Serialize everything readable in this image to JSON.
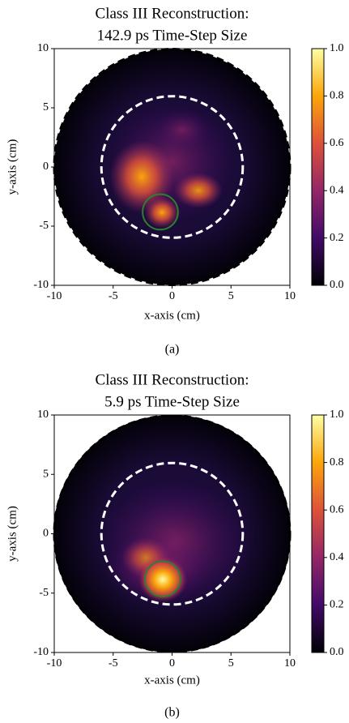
{
  "chart_data": [
    {
      "type": "heatmap",
      "title": [
        "Class III Reconstruction:",
        "142.9 ps Time-Step Size"
      ],
      "xlabel": "x-axis (cm)",
      "ylabel": "y-axis (cm)",
      "xlim": [
        -10,
        10
      ],
      "ylim": [
        -10,
        10
      ],
      "xticks": [
        -10,
        -5,
        0,
        5,
        10
      ],
      "yticks": [
        -10,
        -5,
        0,
        5,
        10
      ],
      "colormap": [
        "#000004",
        "#420a68",
        "#932667",
        "#dd513a",
        "#fca50a",
        "#fcffa4"
      ],
      "colorbar": {
        "lim": [
          0,
          1
        ],
        "ticks": [
          {
            "value": 0,
            "label": "0.0"
          },
          {
            "value": 0.2,
            "label": "0.2"
          },
          {
            "value": 0.4,
            "label": "0.4"
          },
          {
            "value": 0.6,
            "label": "0.6"
          },
          {
            "value": 0.8,
            "label": "0.8"
          },
          {
            "value": 1,
            "label": "1.0"
          }
        ]
      },
      "circles": [
        {
          "cx": 0,
          "cy": 0,
          "r": 10,
          "color": "#000000",
          "style": "dashed"
        },
        {
          "cx": 0,
          "cy": 0,
          "r": 6,
          "color": "#ffffff",
          "style": "dashed"
        },
        {
          "cx": -1,
          "cy": -3.8,
          "r": 1.5,
          "color": "#2e7d32",
          "style": "solid"
        }
      ],
      "caption": "(a)"
    },
    {
      "type": "heatmap",
      "title": [
        "Class III Reconstruction:",
        "5.9 ps Time-Step Size"
      ],
      "xlabel": "x-axis (cm)",
      "ylabel": "y-axis (cm)",
      "xlim": [
        -10,
        10
      ],
      "ylim": [
        -10,
        10
      ],
      "xticks": [
        -10,
        -5,
        0,
        5,
        10
      ],
      "yticks": [
        -10,
        -5,
        0,
        5,
        10
      ],
      "colormap": [
        "#000004",
        "#420a68",
        "#932667",
        "#dd513a",
        "#fca50a",
        "#fcffa4"
      ],
      "colorbar": {
        "lim": [
          0,
          1
        ],
        "ticks": [
          {
            "value": 0,
            "label": "0.0"
          },
          {
            "value": 0.2,
            "label": "0.2"
          },
          {
            "value": 0.4,
            "label": "0.4"
          },
          {
            "value": 0.6,
            "label": "0.6"
          },
          {
            "value": 0.8,
            "label": "0.8"
          },
          {
            "value": 1,
            "label": "1.0"
          }
        ]
      },
      "circles": [
        {
          "cx": 0,
          "cy": 0,
          "r": 10,
          "color": "#000000",
          "style": "dashed"
        },
        {
          "cx": 0,
          "cy": 0,
          "r": 6,
          "color": "#ffffff",
          "style": "dashed"
        },
        {
          "cx": -0.8,
          "cy": -3.8,
          "r": 1.5,
          "color": "#2e7d32",
          "style": "solid"
        }
      ],
      "caption": "(b)"
    }
  ]
}
